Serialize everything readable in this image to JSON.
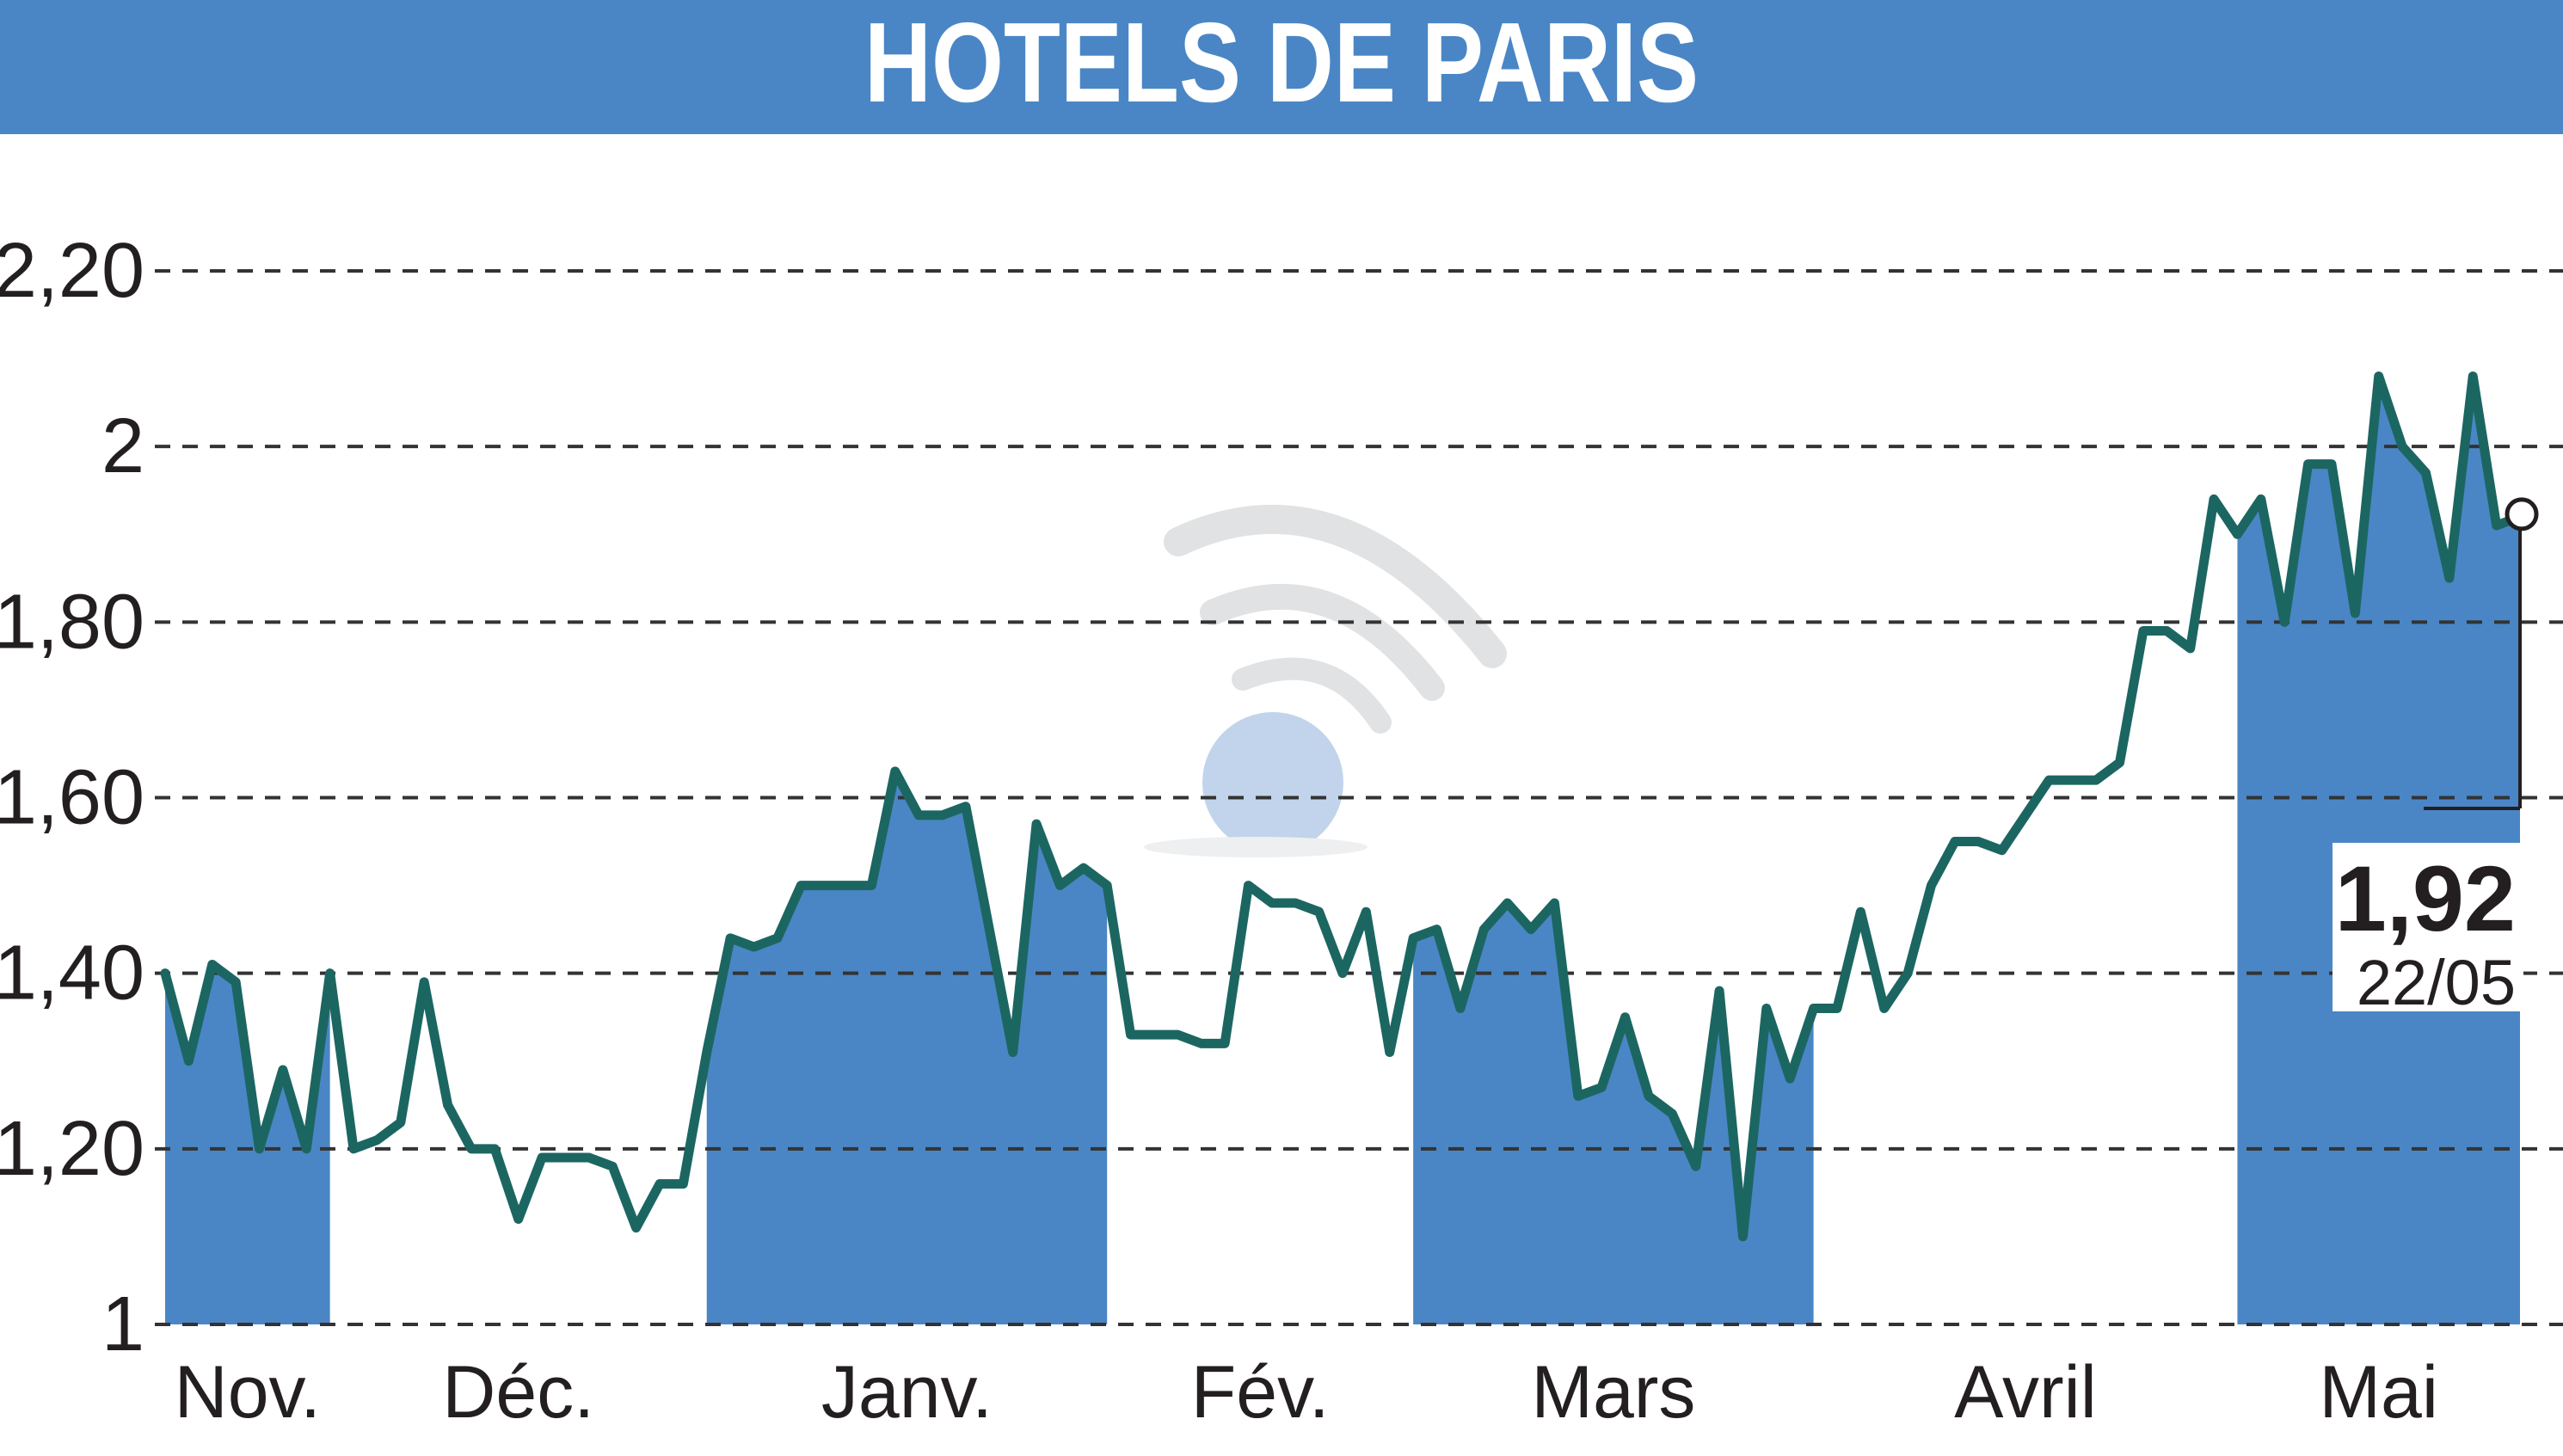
{
  "title": "HOTELS DE PARIS",
  "colors": {
    "header": "#4a86c5",
    "band": "#4a86c5",
    "line": "#1c6662",
    "grid": "#333333",
    "text": "#231f20",
    "background": "#ffffff"
  },
  "last_value": {
    "value": "1,92",
    "date": "22/05"
  },
  "chart_data": {
    "type": "line",
    "title": "HOTELS DE PARIS",
    "xlabel": "",
    "ylabel": "",
    "ylim": [
      1.0,
      2.25
    ],
    "grid": true,
    "y_ticks": [
      {
        "value": 1.0,
        "label": "1"
      },
      {
        "value": 1.2,
        "label": "1,20"
      },
      {
        "value": 1.4,
        "label": "1,40"
      },
      {
        "value": 1.6,
        "label": "1,60"
      },
      {
        "value": 1.8,
        "label": "1,80"
      },
      {
        "value": 2.0,
        "label": "2"
      },
      {
        "value": 2.2,
        "label": "2,20"
      }
    ],
    "months": [
      {
        "label": "Nov.",
        "start": 0,
        "end": 7,
        "shaded": true
      },
      {
        "label": "Déc.",
        "start": 7,
        "end": 23,
        "shaded": false
      },
      {
        "label": "Janv.",
        "start": 23,
        "end": 40,
        "shaded": true
      },
      {
        "label": "Fév.",
        "start": 40,
        "end": 53,
        "shaded": false
      },
      {
        "label": "Mars",
        "start": 53,
        "end": 70,
        "shaded": true
      },
      {
        "label": "Avril",
        "start": 70,
        "end": 88,
        "shaded": false
      },
      {
        "label": "Mai",
        "start": 88,
        "end": 100,
        "shaded": true
      }
    ],
    "series": [
      {
        "values": [
          1.4,
          1.3,
          1.41,
          1.39,
          1.2,
          1.29,
          1.2,
          1.4,
          1.2,
          1.21,
          1.23,
          1.39,
          1.25,
          1.2,
          1.2,
          1.12,
          1.19,
          1.19,
          1.19,
          1.18,
          1.11,
          1.16,
          1.16,
          1.31,
          1.44,
          1.43,
          1.44,
          1.5,
          1.5,
          1.5,
          1.5,
          1.63,
          1.58,
          1.58,
          1.59,
          1.45,
          1.31,
          1.57,
          1.5,
          1.52,
          1.5,
          1.33,
          1.33,
          1.33,
          1.32,
          1.32,
          1.5,
          1.48,
          1.48,
          1.47,
          1.4,
          1.47,
          1.31,
          1.44,
          1.45,
          1.36,
          1.45,
          1.48,
          1.45,
          1.48,
          1.26,
          1.27,
          1.35,
          1.26,
          1.24,
          1.18,
          1.38,
          1.1,
          1.36,
          1.28,
          1.36,
          1.36,
          1.47,
          1.36,
          1.4,
          1.5,
          1.55,
          1.55,
          1.54,
          1.58,
          1.62,
          1.62,
          1.62,
          1.64,
          1.79,
          1.79,
          1.77,
          1.94,
          1.9,
          1.94,
          1.8,
          1.98,
          1.98,
          1.81,
          2.08,
          2.0,
          1.97,
          1.85,
          2.08,
          1.91,
          1.92
        ]
      }
    ]
  }
}
